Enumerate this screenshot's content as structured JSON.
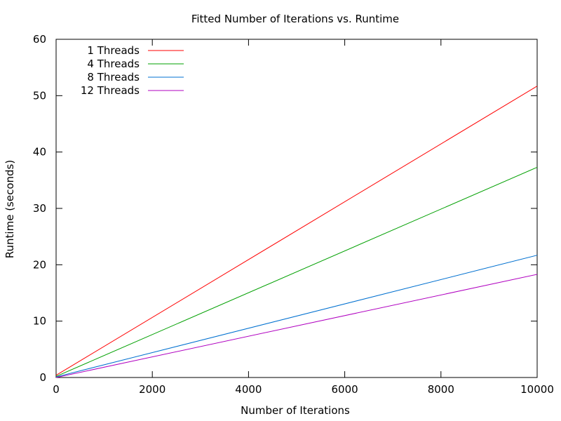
{
  "chart_data": {
    "type": "line",
    "title": "Fitted Number of Iterations vs. Runtime",
    "xlabel": "Number of Iterations",
    "ylabel": "Runtime (seconds)",
    "xlim": [
      0,
      10000
    ],
    "ylim": [
      0,
      60
    ],
    "xticks": [
      "0",
      "2000",
      "4000",
      "6000",
      "8000",
      "10000"
    ],
    "yticks": [
      "0",
      "10",
      "20",
      "30",
      "40",
      "50",
      "60"
    ],
    "grid": false,
    "legend_position": "top-left",
    "series": [
      {
        "name": "1 Threads",
        "color": "#ff0000",
        "x": [
          0,
          10000
        ],
        "y": [
          0.4,
          51.7
        ]
      },
      {
        "name": "4 Threads",
        "color": "#00a000",
        "x": [
          0,
          10000
        ],
        "y": [
          0.2,
          37.3
        ]
      },
      {
        "name": "8 Threads",
        "color": "#0070d0",
        "x": [
          0,
          10000
        ],
        "y": [
          0.1,
          21.7
        ]
      },
      {
        "name": "12 Threads",
        "color": "#b000c0",
        "x": [
          0,
          10000
        ],
        "y": [
          0.0,
          18.3
        ]
      }
    ]
  }
}
